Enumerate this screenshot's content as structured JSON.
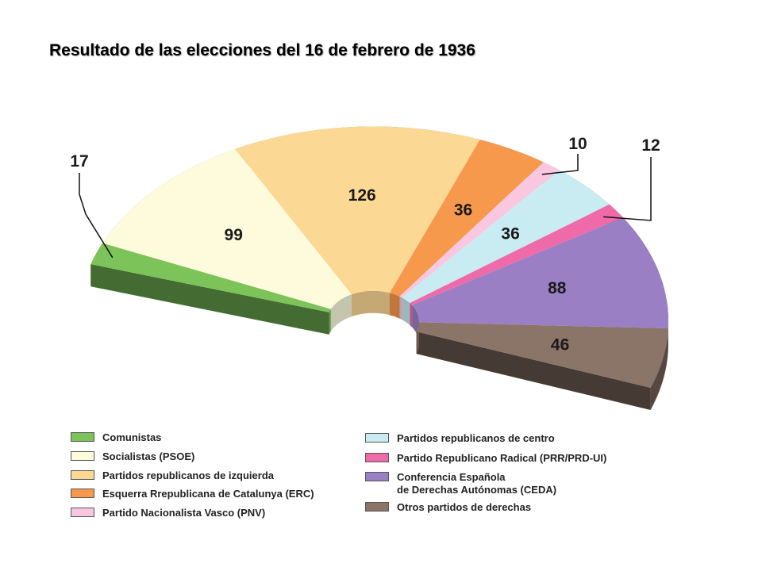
{
  "title": "Resultado de las elecciones del 16 de febrero de 1936",
  "chart_data": {
    "type": "pie",
    "shape": "semicircle-3d",
    "categories": [
      "Comunistas",
      "Socialistas (PSOE)",
      "Partidos republicanos de izquierda",
      "Esquerra Rrepublicana de Catalunya (ERC)",
      "Partido Nacionalista Vasco (PNV)",
      "Partidos republicanos de centro",
      "Partido Republicano Radical (PRR/PRD-UI)",
      "Conferencia Española de Derechas Autónomas (CEDA)",
      "Otros partidos de derechas"
    ],
    "values": [
      17,
      99,
      126,
      36,
      10,
      36,
      12,
      88,
      46
    ],
    "value_labels": [
      "17",
      "99",
      "126",
      "36",
      "10",
      "36",
      "12",
      "88",
      "46"
    ],
    "colors": [
      "#7cc35a",
      "#fdfbdc",
      "#fcd895",
      "#f7994d",
      "#f9c8e0",
      "#c9ecf2",
      "#ee6aa8",
      "#9b7fc4",
      "#8b7468"
    ],
    "legend_placement": "bottom"
  },
  "legend": {
    "left": [
      {
        "label": "Comunistas",
        "color": "#7cc35a"
      },
      {
        "label": "Socialistas (PSOE)",
        "color": "#fdfbdc"
      },
      {
        "label": "Partidos republicanos de izquierda",
        "color": "#fcd895"
      },
      {
        "label": "Esquerra Rrepublicana de Catalunya (ERC)",
        "color": "#f7994d"
      },
      {
        "label": "Partido Nacionalista Vasco (PNV)",
        "color": "#f9c8e0"
      }
    ],
    "right": [
      {
        "label": "Partidos republicanos de centro",
        "color": "#c9ecf2"
      },
      {
        "label": "Partido Republicano Radical (PRR/PRD-UI)",
        "color": "#ee6aa8"
      },
      {
        "label_line1": "Conferencia Española",
        "label_line2": "de Derechas Autónomas (CEDA)",
        "color": "#9b7fc4"
      },
      {
        "label": "Otros partidos de derechas",
        "color": "#8b7468"
      }
    ]
  }
}
